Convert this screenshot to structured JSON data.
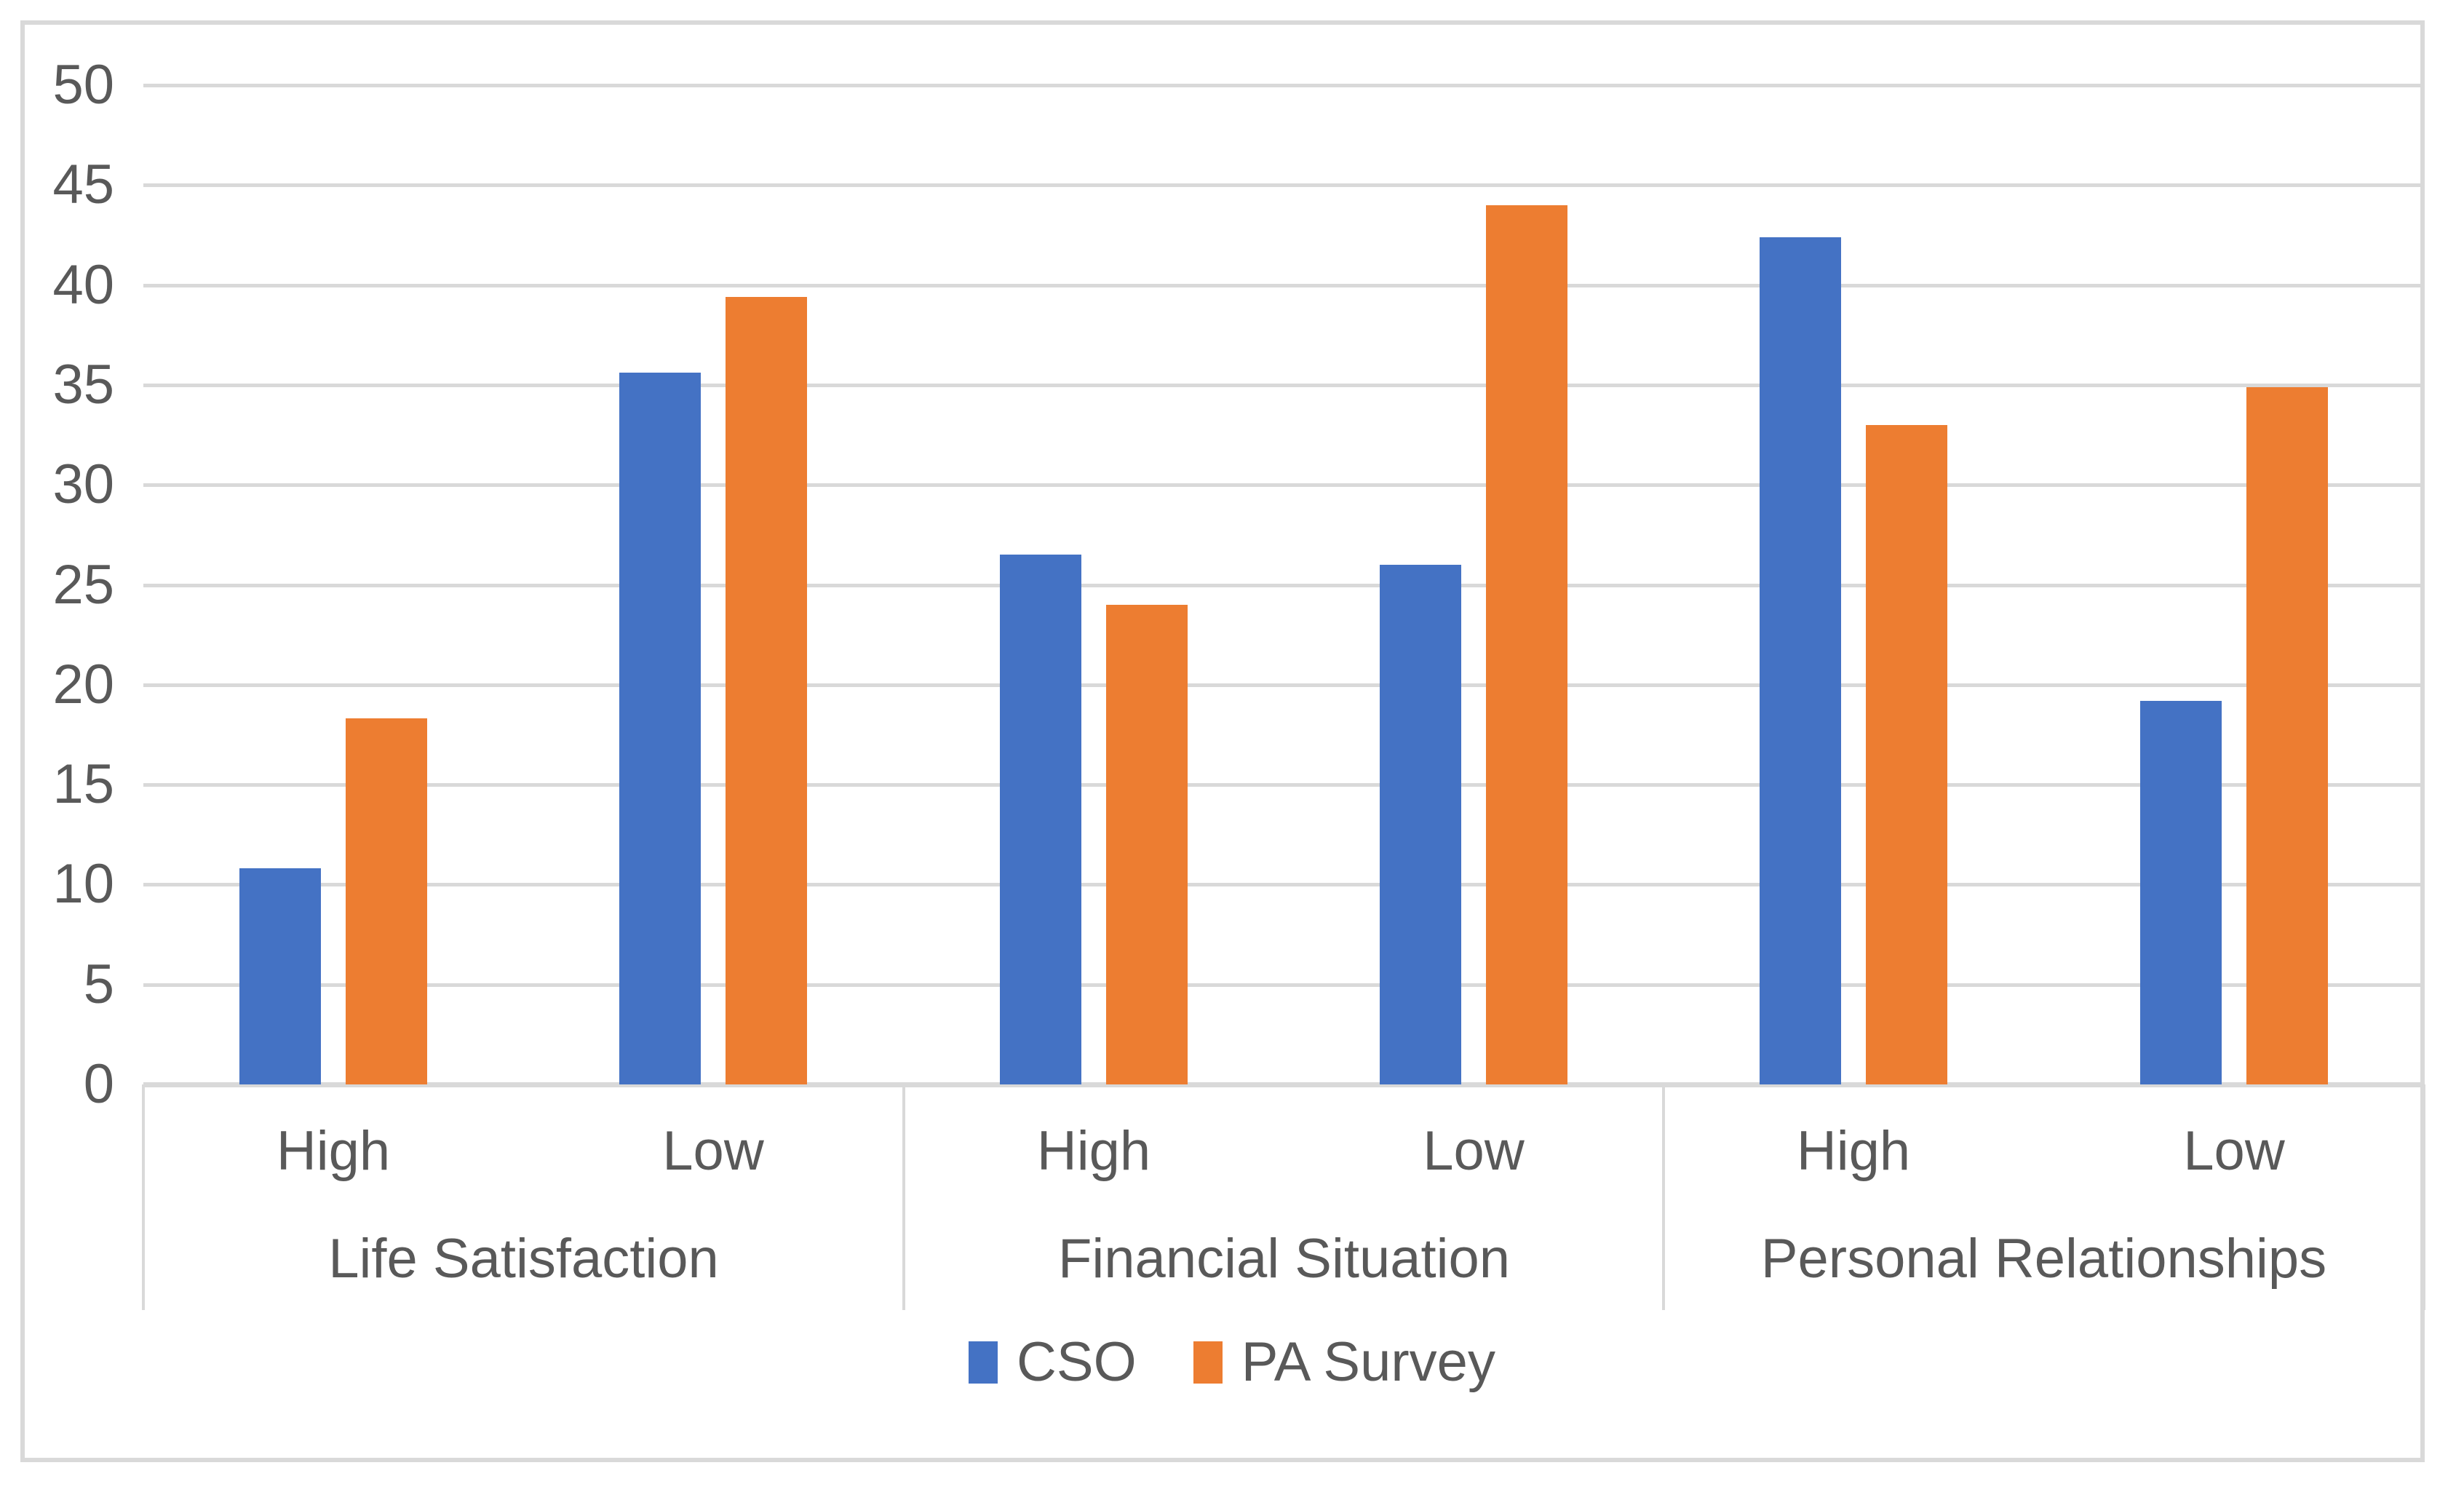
{
  "chart_data": {
    "type": "bar",
    "title": "",
    "groups": [
      "Life Satisfaction",
      "Financial Situation",
      "Personal Relationships"
    ],
    "subcategories": [
      "High",
      "Low"
    ],
    "categories": [
      "High",
      "Low",
      "High",
      "Low",
      "High",
      "Low"
    ],
    "series": [
      {
        "name": "CSO",
        "color": "#4472C4",
        "values": [
          10.8,
          35.6,
          26.5,
          26.0,
          42.4,
          19.2
        ]
      },
      {
        "name": "PA Survey",
        "color": "#ED7D31",
        "values": [
          18.3,
          39.4,
          24.0,
          44.0,
          33.0,
          34.9
        ]
      }
    ],
    "ylim": [
      0,
      50
    ],
    "ytick_step": 5,
    "grid": true,
    "legend_position": "bottom"
  },
  "colors": {
    "gridline": "#d9d9d9",
    "axis_line": "#d9d9d9",
    "frame_border": "#d9d9d9",
    "label_text": "#595959",
    "background": "#ffffff"
  }
}
